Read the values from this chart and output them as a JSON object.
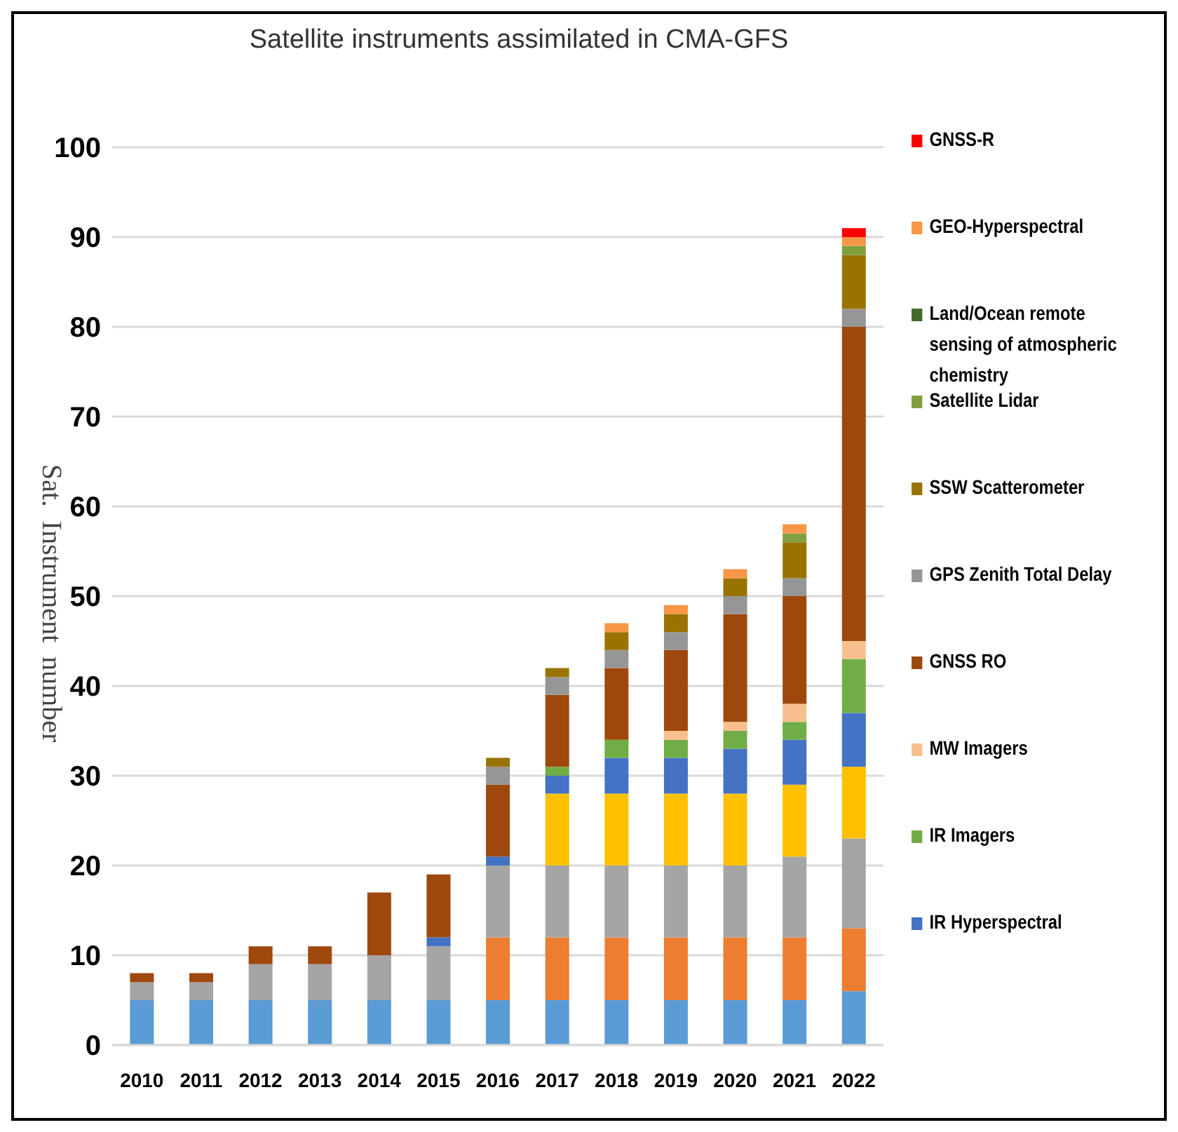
{
  "chart_data": {
    "type": "bar",
    "title": "Satellite instruments assimilated in CMA-GFS",
    "ylabel": "Sat.  Instrument  number",
    "categories": [
      "2010",
      "2011",
      "2012",
      "2013",
      "2014",
      "2015",
      "2016",
      "2017",
      "2018",
      "2019",
      "2020",
      "2021",
      "2022"
    ],
    "stacked": true,
    "ylim": [
      0,
      100
    ],
    "yticks": [
      0,
      10,
      20,
      30,
      40,
      50,
      60,
      70,
      80,
      90,
      100
    ],
    "grid": "y",
    "legend": "right",
    "series": [
      {
        "color": "#5b9bd5",
        "values": [
          5,
          5,
          5,
          5,
          5,
          5,
          5,
          5,
          5,
          5,
          5,
          5,
          6
        ]
      },
      {
        "color": "#ed7d31",
        "values": [
          0,
          0,
          0,
          0,
          0,
          0,
          7,
          7,
          7,
          7,
          7,
          7,
          7
        ]
      },
      {
        "color": "#a5a5a5",
        "values": [
          2,
          2,
          4,
          4,
          5,
          6,
          8,
          8,
          8,
          8,
          8,
          9,
          10
        ]
      },
      {
        "color": "#ffc000",
        "values": [
          0,
          0,
          0,
          0,
          0,
          0,
          0,
          8,
          8,
          8,
          8,
          8,
          8
        ]
      },
      {
        "name": "IR Hyperspectral",
        "color": "#4472c4",
        "values": [
          0,
          0,
          0,
          0,
          0,
          1,
          1,
          2,
          4,
          4,
          5,
          5,
          6
        ]
      },
      {
        "name": "IR Imagers",
        "color": "#70ad47",
        "values": [
          0,
          0,
          0,
          0,
          0,
          0,
          0,
          1,
          2,
          2,
          2,
          2,
          6
        ]
      },
      {
        "name": "MW Imagers",
        "color": "#f8c08f",
        "values": [
          0,
          0,
          0,
          0,
          0,
          0,
          0,
          0,
          0,
          1,
          1,
          2,
          2
        ]
      },
      {
        "name": "GNSS RO",
        "color": "#9e480e",
        "values": [
          1,
          1,
          2,
          2,
          7,
          7,
          8,
          8,
          8,
          9,
          12,
          12,
          35
        ]
      },
      {
        "name": "GPS Zenith Total Delay",
        "color": "#969696",
        "values": [
          0,
          0,
          0,
          0,
          0,
          0,
          2,
          2,
          2,
          2,
          2,
          2,
          2
        ]
      },
      {
        "name": "SSW Scatterometer",
        "color": "#997300",
        "values": [
          0,
          0,
          0,
          0,
          0,
          0,
          1,
          1,
          2,
          2,
          2,
          4,
          6
        ]
      },
      {
        "name": "Satellite Lidar",
        "color": "#80a040",
        "values": [
          0,
          0,
          0,
          0,
          0,
          0,
          0,
          0,
          0,
          0,
          0,
          1,
          1
        ]
      },
      {
        "name": "Land/Ocean remote sensing of atmospheric chemistry",
        "color": "#43682b",
        "values": [
          0,
          0,
          0,
          0,
          0,
          0,
          0,
          0,
          0,
          0,
          0,
          0,
          0
        ]
      },
      {
        "name": "GEO-Hyperspectral",
        "color": "#f79646",
        "values": [
          0,
          0,
          0,
          0,
          0,
          0,
          0,
          0,
          1,
          1,
          1,
          1,
          1
        ]
      },
      {
        "name": "GNSS-R",
        "color": "#ff0000",
        "values": [
          0,
          0,
          0,
          0,
          0,
          0,
          0,
          0,
          0,
          0,
          0,
          0,
          1
        ]
      }
    ]
  }
}
